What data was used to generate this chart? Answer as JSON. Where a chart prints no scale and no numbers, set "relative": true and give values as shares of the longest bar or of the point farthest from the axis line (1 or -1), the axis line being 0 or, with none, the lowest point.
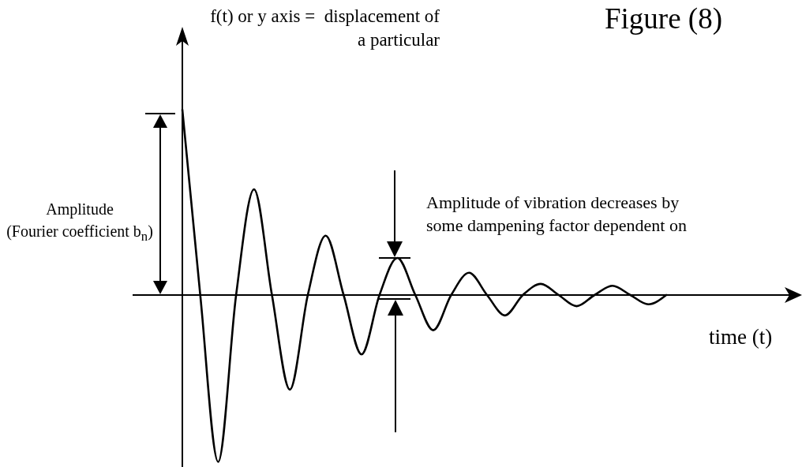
{
  "chart_data": {
    "type": "line",
    "relative": true,
    "title": "Figure (8)",
    "ylabel": "f(t) or y axis =  displacement of a particular",
    "xlabel": "time (t)",
    "annotations": [
      "Amplitude",
      "(Fourier coefficient b$_{n}$)",
      "Amplitude of vibration decreases by some dampening factor dependent on"
    ],
    "categories": [
      null,
      null,
      null,
      null,
      null,
      null,
      null,
      null,
      null,
      null,
      null,
      null,
      null,
      null,
      null,
      null,
      null,
      null,
      null,
      null,
      null,
      null,
      null,
      null,
      null,
      null,
      null,
      null
    ],
    "series": [
      {
        "color": "#000000",
        "values": [
          1.0,
          0,
          -0.9,
          0,
          0.57,
          0,
          -0.51,
          0,
          0.32,
          0,
          -0.32,
          0,
          0.2,
          0,
          -0.19,
          0,
          0.12,
          0,
          -0.11,
          0,
          0.06,
          0,
          -0.06,
          0,
          0.05,
          0,
          -0.05,
          0
        ]
      }
    ]
  }
}
